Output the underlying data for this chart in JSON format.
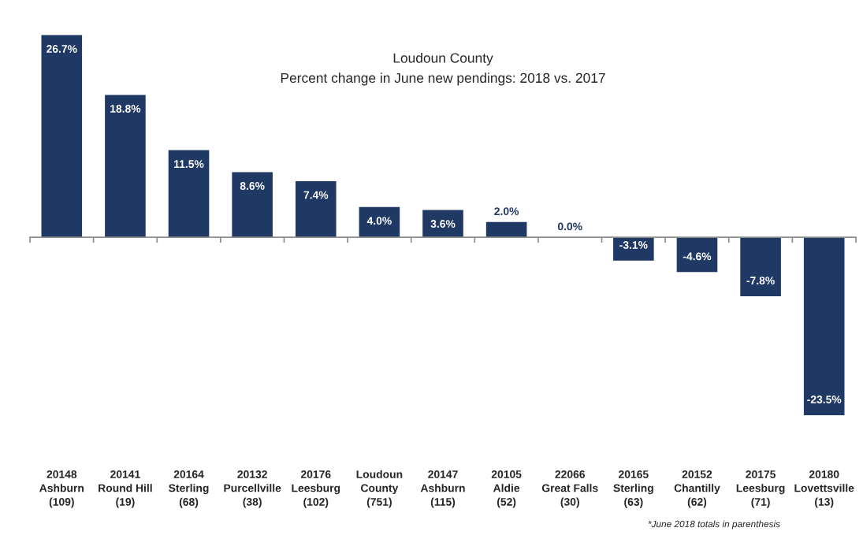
{
  "chart_data": {
    "type": "bar",
    "title": "Loudoun County",
    "subtitle": "Percent change in June new pendings: 2018 vs. 2017",
    "categories": [
      "20148\nAshburn\n(109)",
      "20141\nRound Hill\n(19)",
      "20164\nSterling\n(68)",
      "20132\nPurcellville\n(38)",
      "20176\nLeesburg\n(102)",
      "Loudoun\nCounty\n(751)",
      "20147\nAshburn\n(115)",
      "20105\nAldie\n(52)",
      "22066\nGreat Falls\n(30)",
      "20165\nSterling\n(63)",
      "20152\nChantilly\n(62)",
      "20175\nLeesburg\n(71)",
      "20180\nLovettsville\n(13)"
    ],
    "values": [
      26.7,
      18.8,
      11.5,
      8.6,
      7.4,
      4.0,
      3.6,
      2.0,
      0.0,
      -3.1,
      -4.6,
      -7.8,
      -23.5
    ],
    "value_labels": [
      "26.7%",
      "18.8%",
      "11.5%",
      "8.6%",
      "7.4%",
      "4.0%",
      "3.6%",
      "2.0%",
      "0.0%",
      "-3.1%",
      "-4.6%",
      "-7.8%",
      "-23.5%"
    ],
    "color": "#1f3864",
    "tick_labels": "x",
    "annotations": [
      "*June 2018 totals in parenthesis"
    ]
  }
}
